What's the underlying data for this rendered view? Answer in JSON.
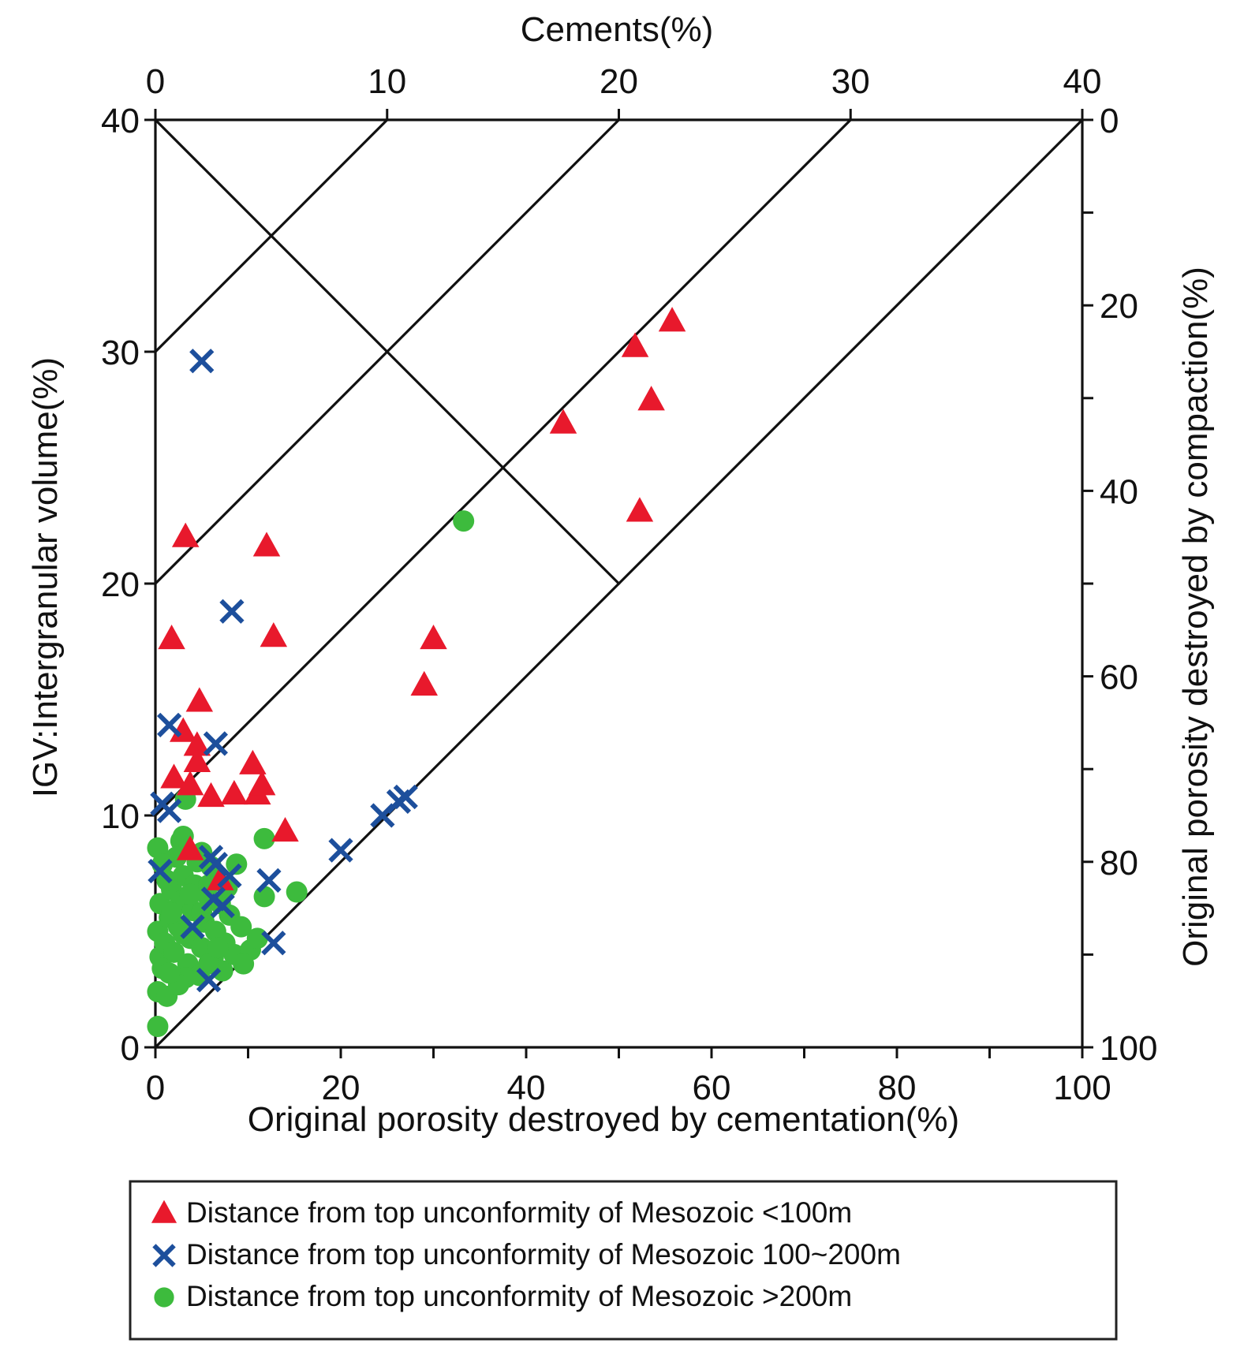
{
  "chart_data": {
    "type": "scatter",
    "title": "",
    "axes": {
      "top": {
        "label": "Cements(%)",
        "range": [
          0,
          40
        ],
        "ticks": [
          "0",
          "10",
          "20",
          "30",
          "40"
        ]
      },
      "left": {
        "label": "IGV:Intergranular volume(%)",
        "range": [
          0,
          40
        ],
        "ticks": [
          "0",
          "10",
          "20",
          "30",
          "40"
        ]
      },
      "bottom": {
        "label": "Original porosity destroyed by cementation(%)",
        "range": [
          0,
          100
        ],
        "ticks": [
          "0",
          "20",
          "40",
          "60",
          "80",
          "100"
        ]
      },
      "right": {
        "label": "Original porosity destroyed by compaction(%)",
        "range": [
          0,
          100
        ],
        "ticks": [
          "0",
          "20",
          "40",
          "60",
          "80",
          "100"
        ]
      }
    },
    "reference_lines": [
      {
        "from": [
          0,
          40
        ],
        "to": [
          20,
          20
        ]
      },
      {
        "from": [
          0,
          30
        ],
        "to": [
          10,
          40
        ]
      },
      {
        "from": [
          0,
          20
        ],
        "to": [
          20,
          40
        ]
      },
      {
        "from": [
          0,
          10
        ],
        "to": [
          30,
          40
        ]
      },
      {
        "from": [
          0,
          0
        ],
        "to": [
          40,
          40
        ]
      }
    ],
    "series": [
      {
        "name": "Distance from top unconformity of Mesozoic  <100m",
        "marker": "triangle",
        "color": "#e8192c",
        "points": [
          [
            0.7,
            17.6
          ],
          [
            1.3,
            22.0
          ],
          [
            0.8,
            11.6
          ],
          [
            1.2,
            13.6
          ],
          [
            1.8,
            13.0
          ],
          [
            1.9,
            14.9
          ],
          [
            1.8,
            12.3
          ],
          [
            1.5,
            11.3
          ],
          [
            2.4,
            10.8
          ],
          [
            3.4,
            10.9
          ],
          [
            4.2,
            12.2
          ],
          [
            4.4,
            10.9
          ],
          [
            4.6,
            11.3
          ],
          [
            4.8,
            21.6
          ],
          [
            5.1,
            17.7
          ],
          [
            5.6,
            9.3
          ],
          [
            1.5,
            8.5
          ],
          [
            2.8,
            7.2
          ],
          [
            11.6,
            15.6
          ],
          [
            12.0,
            17.6
          ],
          [
            17.6,
            26.9
          ],
          [
            20.7,
            30.2
          ],
          [
            21.4,
            27.9
          ],
          [
            22.3,
            31.3
          ],
          [
            20.9,
            23.1
          ]
        ]
      },
      {
        "name": "Distance from top unconformity of Mesozoic  100~200m",
        "marker": "x",
        "color": "#1d4f9c",
        "points": [
          [
            2.0,
            29.6
          ],
          [
            3.3,
            18.8
          ],
          [
            0.6,
            13.9
          ],
          [
            2.6,
            13.1
          ],
          [
            0.3,
            10.5
          ],
          [
            0.6,
            10.2
          ],
          [
            2.4,
            8.2
          ],
          [
            2.6,
            7.9
          ],
          [
            3.2,
            7.4
          ],
          [
            4.9,
            7.2
          ],
          [
            0.2,
            7.6
          ],
          [
            2.5,
            6.4
          ],
          [
            2.9,
            6.1
          ],
          [
            5.1,
            4.5
          ],
          [
            2.3,
            2.9
          ],
          [
            8.0,
            8.5
          ],
          [
            9.8,
            10.0
          ],
          [
            10.5,
            10.6
          ],
          [
            10.8,
            10.8
          ],
          [
            1.6,
            5.2
          ]
        ]
      },
      {
        "name": "Distance from top unconformity of Mesozoic  >200m",
        "marker": "circle",
        "color": "#3dbb3d",
        "points": [
          [
            13.3,
            22.7
          ],
          [
            1.3,
            10.7
          ],
          [
            0.1,
            8.6
          ],
          [
            1.1,
            8.9
          ],
          [
            1.2,
            9.1
          ],
          [
            2.0,
            8.4
          ],
          [
            3.5,
            7.9
          ],
          [
            4.7,
            9.0
          ],
          [
            4.7,
            6.5
          ],
          [
            6.1,
            6.7
          ],
          [
            0.2,
            6.2
          ],
          [
            0.1,
            5.0
          ],
          [
            0.2,
            3.9
          ],
          [
            0.1,
            2.4
          ],
          [
            0.5,
            2.2
          ],
          [
            0.1,
            0.9
          ],
          [
            0.4,
            4.5
          ],
          [
            0.6,
            5.6
          ],
          [
            0.7,
            6.8
          ],
          [
            0.8,
            4.1
          ],
          [
            1.0,
            5.2
          ],
          [
            1.1,
            6.3
          ],
          [
            1.2,
            7.4
          ],
          [
            1.4,
            3.6
          ],
          [
            1.5,
            4.7
          ],
          [
            1.6,
            5.9
          ],
          [
            1.7,
            7.0
          ],
          [
            1.9,
            3.1
          ],
          [
            2.0,
            4.3
          ],
          [
            2.1,
            5.4
          ],
          [
            2.2,
            6.6
          ],
          [
            2.4,
            7.8
          ],
          [
            2.5,
            3.9
          ],
          [
            2.6,
            5.0
          ],
          [
            2.8,
            6.2
          ],
          [
            2.9,
            3.3
          ],
          [
            3.0,
            4.5
          ],
          [
            3.2,
            5.7
          ],
          [
            3.4,
            4.0
          ],
          [
            3.7,
            5.2
          ],
          [
            4.1,
            4.2
          ],
          [
            0.3,
            7.9
          ],
          [
            0.9,
            8.2
          ],
          [
            1.3,
            3.0
          ],
          [
            0.3,
            3.4
          ],
          [
            2.3,
            3.6
          ],
          [
            1.8,
            8.0
          ],
          [
            0.5,
            7.2
          ],
          [
            1.0,
            2.7
          ],
          [
            2.7,
            4.3
          ],
          [
            3.8,
            3.6
          ],
          [
            4.4,
            4.7
          ],
          [
            0.6,
            3.2
          ],
          [
            1.2,
            4.9
          ],
          [
            2.0,
            5.8
          ],
          [
            0.7,
            5.8
          ],
          [
            1.5,
            6.6
          ],
          [
            2.3,
            7.0
          ],
          [
            3.1,
            6.9
          ]
        ]
      }
    ]
  },
  "legend": {
    "items": [
      {
        "marker": "triangle",
        "color": "#e8192c",
        "label": "Distance from top unconformity of Mesozoic  <100m"
      },
      {
        "marker": "x",
        "color": "#1d4f9c",
        "label": "Distance from top unconformity of Mesozoic  100~200m"
      },
      {
        "marker": "circle",
        "color": "#3dbb3d",
        "label": "Distance from top unconformity of Mesozoic  >200m"
      }
    ]
  }
}
